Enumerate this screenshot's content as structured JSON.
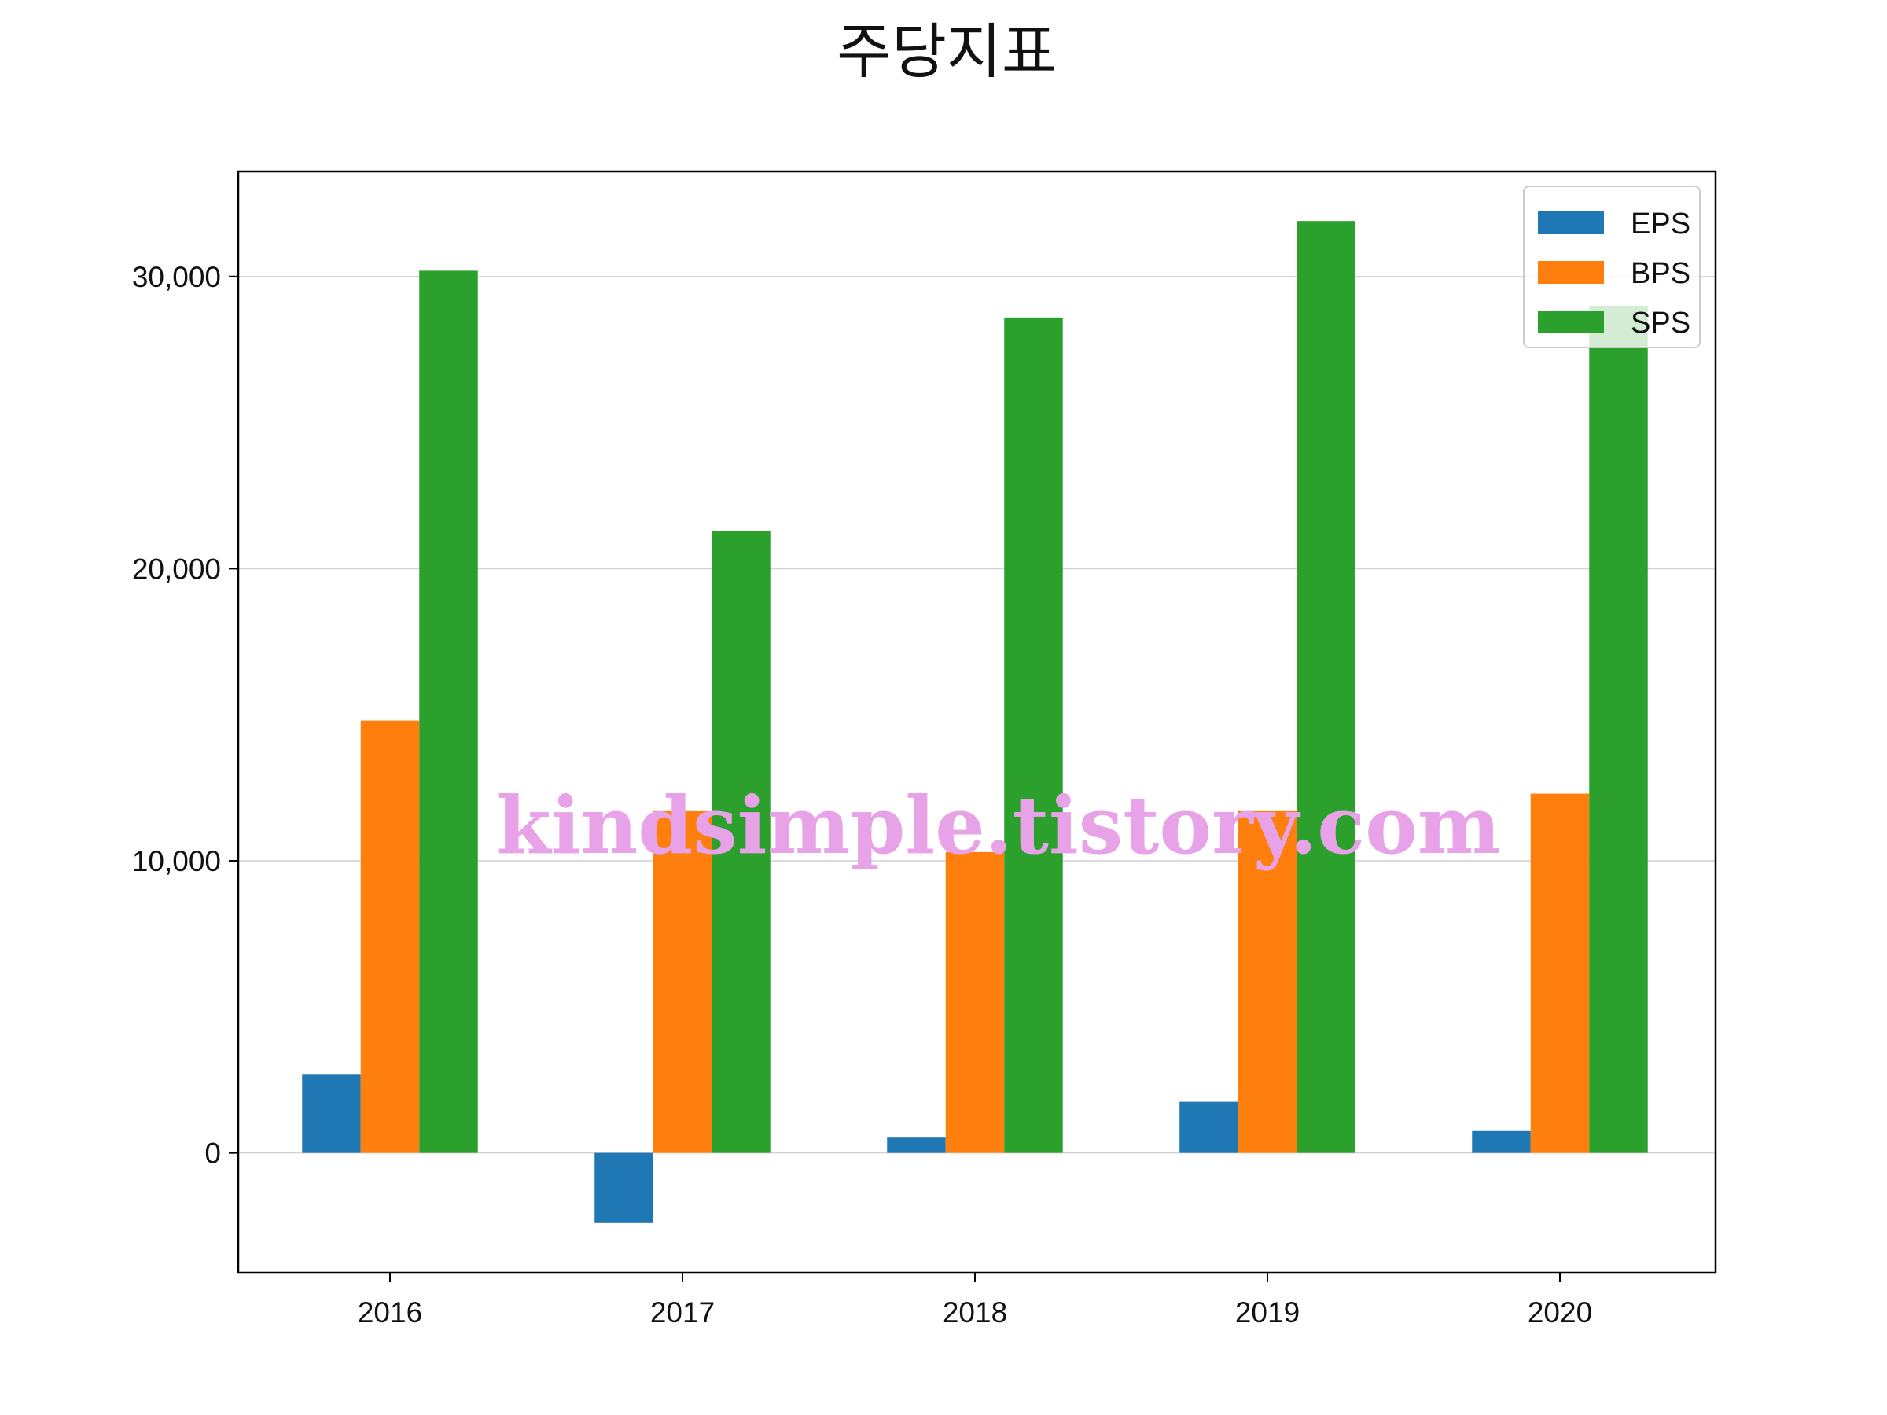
{
  "chart_data": {
    "type": "bar",
    "title": "주당지표",
    "xlabel": "",
    "ylabel": "",
    "categories": [
      "2016",
      "2017",
      "2018",
      "2019",
      "2020"
    ],
    "series": [
      {
        "name": "EPS",
        "color": "#1f77b4",
        "values": [
          2700,
          -2400,
          550,
          1750,
          750
        ]
      },
      {
        "name": "BPS",
        "color": "#ff7f0e",
        "values": [
          14800,
          11700,
          10300,
          11700,
          12300
        ]
      },
      {
        "name": "SPS",
        "color": "#2ca02c",
        "values": [
          30200,
          21300,
          28600,
          31900,
          29000
        ]
      }
    ],
    "ylim": [
      -4100,
      33600
    ],
    "yticks": [
      0,
      10000,
      20000,
      30000
    ],
    "ytick_labels": [
      "0",
      "10,000",
      "20,000",
      "30,000"
    ],
    "grid": "horizontal",
    "legend_position": "top-right"
  },
  "watermark": "kindsimple.tistory.com"
}
